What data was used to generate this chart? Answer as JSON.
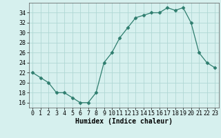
{
  "x": [
    0,
    1,
    2,
    3,
    4,
    5,
    6,
    7,
    8,
    9,
    10,
    11,
    12,
    13,
    14,
    15,
    16,
    17,
    18,
    19,
    20,
    21,
    22,
    23
  ],
  "y": [
    22,
    21,
    20,
    18,
    18,
    17,
    16,
    16,
    18,
    24,
    26,
    29,
    31,
    33,
    33.5,
    34,
    34,
    35,
    34.5,
    35,
    32,
    26,
    24,
    23
  ],
  "line_color": "#2e7d6e",
  "marker": "D",
  "marker_size": 2.5,
  "bg_color": "#d6f0ee",
  "grid_color": "#b0d8d4",
  "xlabel": "Humidex (Indice chaleur)",
  "ylim": [
    15,
    36
  ],
  "xlim": [
    -0.5,
    23.5
  ],
  "yticks": [
    16,
    18,
    20,
    22,
    24,
    26,
    28,
    30,
    32,
    34
  ],
  "xticks": [
    0,
    1,
    2,
    3,
    4,
    5,
    6,
    7,
    8,
    9,
    10,
    11,
    12,
    13,
    14,
    15,
    16,
    17,
    18,
    19,
    20,
    21,
    22,
    23
  ],
  "xlabel_fontsize": 7,
  "tick_fontsize": 6
}
